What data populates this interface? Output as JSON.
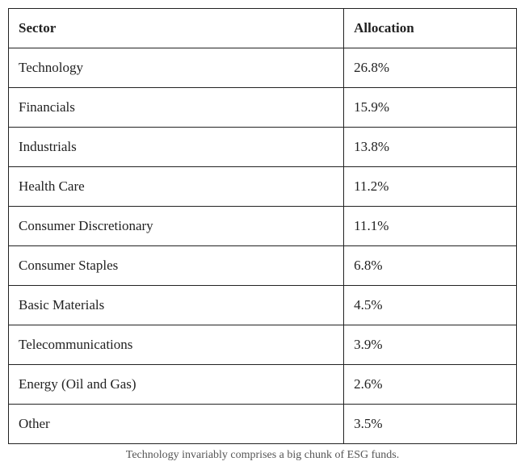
{
  "table": {
    "type": "table",
    "columns": [
      {
        "label": "Sector",
        "width_pct": 66,
        "align": "left"
      },
      {
        "label": "Allocation",
        "width_pct": 34,
        "align": "left"
      }
    ],
    "rows": [
      {
        "sector": "Technology",
        "allocation": "26.8%"
      },
      {
        "sector": "Financials",
        "allocation": "15.9%"
      },
      {
        "sector": "Industrials",
        "allocation": "13.8%"
      },
      {
        "sector": "Health Care",
        "allocation": "11.2%"
      },
      {
        "sector": "Consumer Discretionary",
        "allocation": "11.1%"
      },
      {
        "sector": "Consumer Staples",
        "allocation": "6.8%"
      },
      {
        "sector": "Basic Materials",
        "allocation": "4.5%"
      },
      {
        "sector": "Telecommunications",
        "allocation": "3.9%"
      },
      {
        "sector": "Energy (Oil and Gas)",
        "allocation": "2.6%"
      },
      {
        "sector": "Other",
        "allocation": "3.5%"
      }
    ],
    "caption": "Technology invariably comprises a big chunk of ESG funds.",
    "border_color": "#222222",
    "background_color": "#ffffff",
    "header_font_weight": 700,
    "cell_fontsize": 17,
    "caption_fontsize": 14,
    "caption_color": "#555555"
  }
}
